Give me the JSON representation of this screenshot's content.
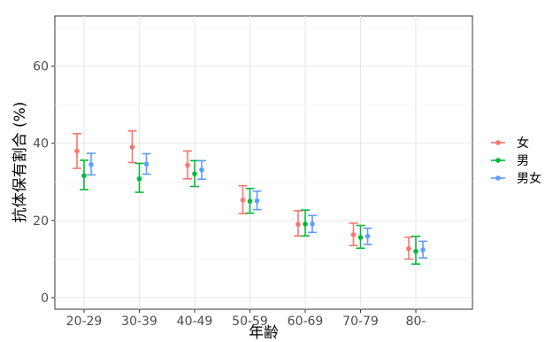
{
  "chart_data": {
    "type": "scatter",
    "title": "",
    "xlabel": "年齢",
    "ylabel": "抗体保有割合 (%)",
    "categories": [
      "20-29",
      "30-39",
      "40-49",
      "50-59",
      "60-69",
      "70-79",
      "80-"
    ],
    "ylim": [
      -3,
      73
    ],
    "yticks": [
      0,
      20,
      40,
      60
    ],
    "grid": true,
    "legend_position": "right",
    "series": [
      {
        "name": "女",
        "color": "#F8766D",
        "values": [
          38.0,
          39.0,
          34.3,
          25.3,
          19.0,
          16.3,
          12.7
        ],
        "lower": [
          33.5,
          35.0,
          30.8,
          21.8,
          16.0,
          13.5,
          10.0
        ],
        "upper": [
          42.5,
          43.2,
          38.0,
          29.0,
          22.5,
          19.3,
          15.7
        ]
      },
      {
        "name": "男",
        "color": "#00BA38",
        "values": [
          31.6,
          30.8,
          32.1,
          25.0,
          19.1,
          15.6,
          12.0
        ],
        "lower": [
          28.0,
          27.3,
          28.8,
          21.9,
          16.0,
          12.8,
          8.7
        ],
        "upper": [
          35.6,
          34.8,
          35.5,
          28.3,
          22.7,
          18.7,
          15.9
        ]
      },
      {
        "name": "男女",
        "color": "#619CFF",
        "values": [
          34.5,
          34.6,
          33.1,
          25.1,
          19.1,
          15.9,
          12.4
        ],
        "lower": [
          31.8,
          32.0,
          30.7,
          22.8,
          16.9,
          13.8,
          10.3
        ],
        "upper": [
          37.4,
          37.3,
          35.5,
          27.6,
          21.3,
          18.0,
          14.6
        ]
      }
    ]
  }
}
